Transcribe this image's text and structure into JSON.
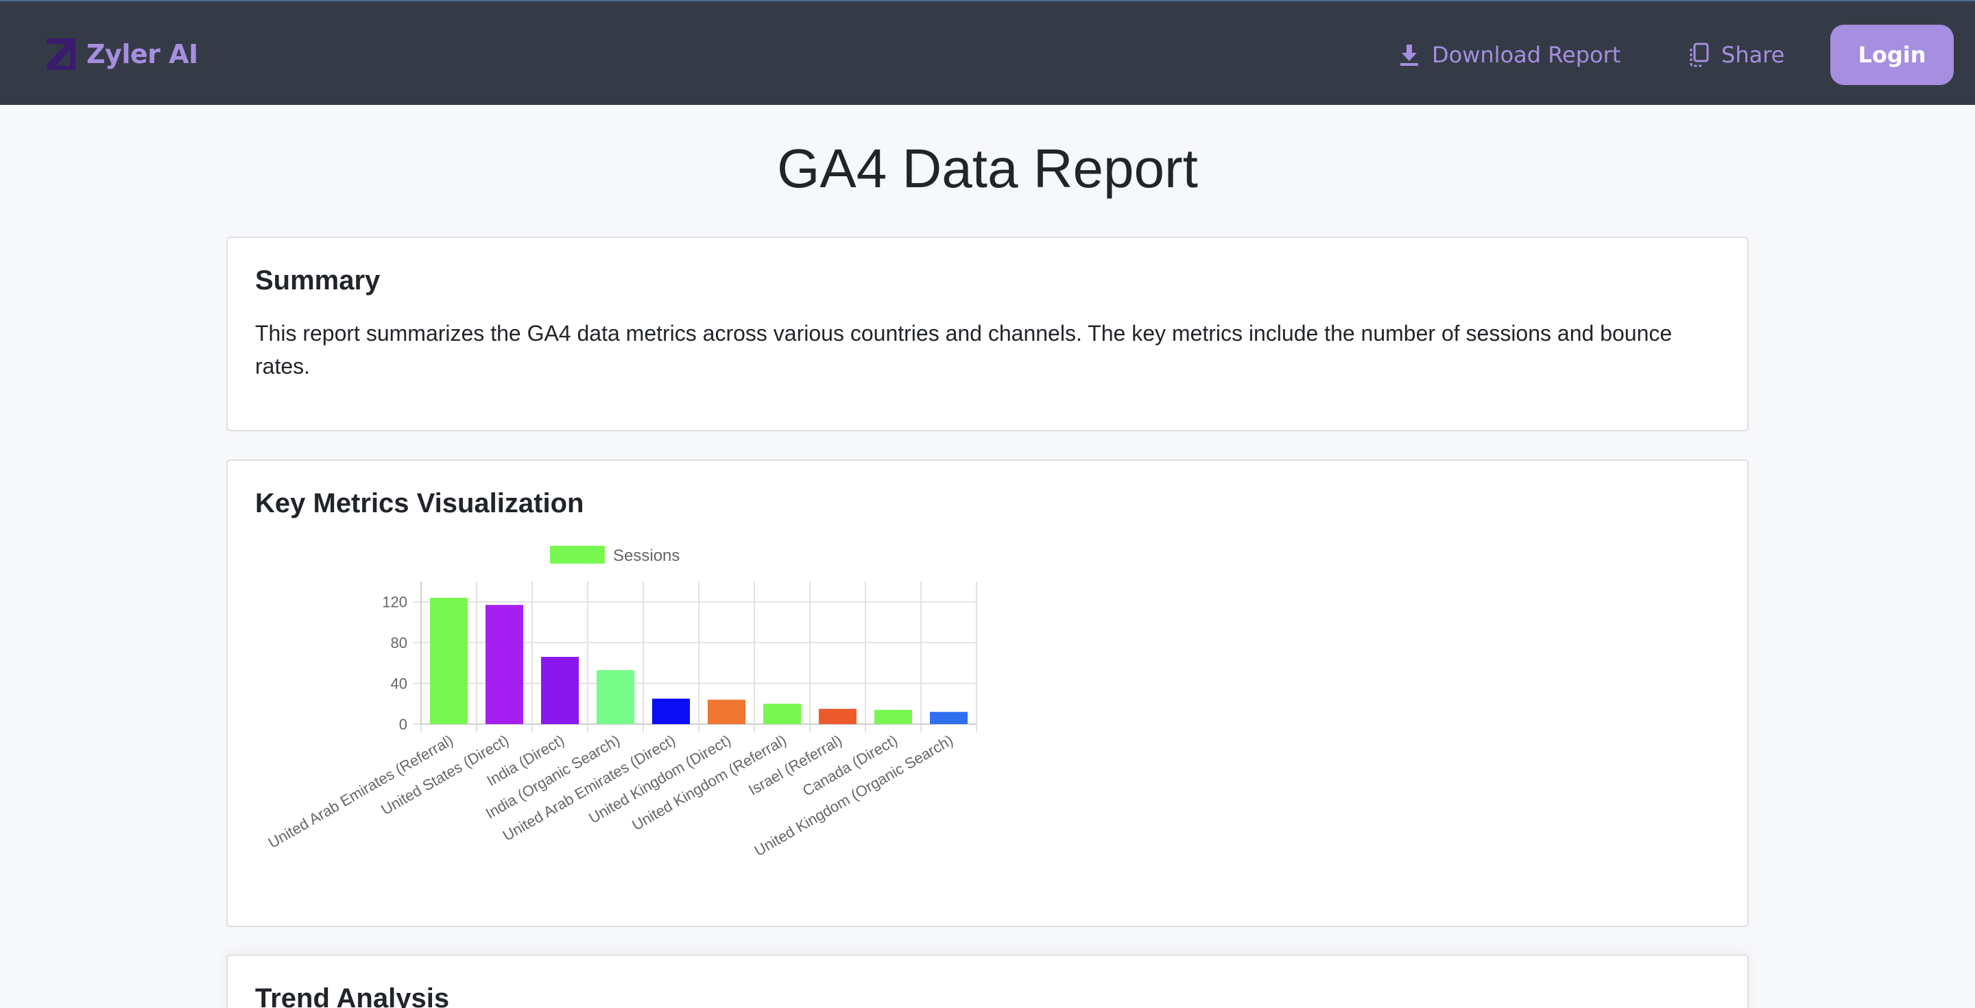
{
  "brand": {
    "name": "Zyler AI"
  },
  "nav": {
    "download_label": "Download Report",
    "share_label": "Share",
    "login_label": "Login"
  },
  "page": {
    "title": "GA4 Data Report"
  },
  "summary": {
    "title": "Summary",
    "text": "This report summarizes the GA4 data metrics across various countries and channels. The key metrics include the number of sessions and bounce rates."
  },
  "metrics": {
    "title": "Key Metrics Visualization"
  },
  "trend": {
    "title": "Trend Analysis"
  },
  "colors": {
    "navbar": "#353b46",
    "accent": "#a68ee0",
    "page_bg": "#f7f8fa"
  },
  "chart_data": {
    "type": "bar",
    "categories": [
      "United Arab Emirates (Referral)",
      "United States (Direct)",
      "India (Direct)",
      "India (Organic Search)",
      "United Arab Emirates (Direct)",
      "United Kingdom (Direct)",
      "United Kingdom (Referral)",
      "Israel (Referral)",
      "Canada (Direct)",
      "United Kingdom (Organic Search)"
    ],
    "series": [
      {
        "name": "Sessions",
        "values": [
          124,
          117,
          66,
          53,
          25,
          24,
          20,
          15,
          14,
          12
        ],
        "colors": [
          "#77f74f",
          "#a61ff2",
          "#8a18ec",
          "#77fc8a",
          "#0b0ef2",
          "#ef7731",
          "#78f650",
          "#ec5a2c",
          "#7af651",
          "#2f6ff0"
        ]
      }
    ],
    "yticks": [
      0,
      40,
      80,
      120
    ],
    "ylim": [
      0,
      140
    ],
    "legend_position": "top",
    "grid": true
  }
}
